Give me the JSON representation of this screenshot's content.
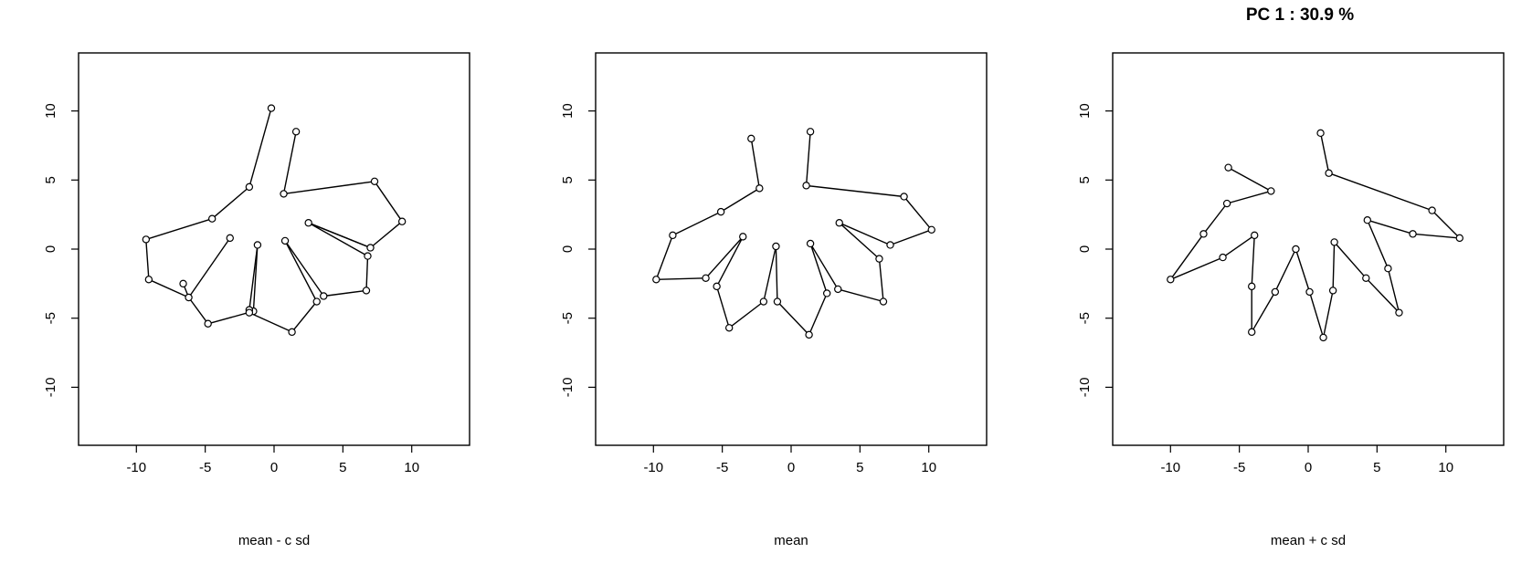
{
  "title": "PC  1 :  30.9 %",
  "chart_data": [
    {
      "type": "line",
      "xlabel": "mean - c sd",
      "ylabel": "",
      "xlim": [
        -14.2,
        14.2
      ],
      "ylim": [
        -14.2,
        14.2
      ],
      "xticks": [
        -10,
        -5,
        0,
        5,
        10
      ],
      "yticks": [
        -10,
        -5,
        0,
        5,
        10
      ],
      "grid": false,
      "paths": [
        [
          [
            -0.2,
            10.2
          ],
          [
            -1.8,
            4.5
          ],
          [
            -4.5,
            2.2
          ],
          [
            -9.3,
            0.7
          ],
          [
            -9.1,
            -2.2
          ],
          [
            -6.2,
            -3.5
          ],
          [
            -4.8,
            -5.4
          ],
          [
            -1.5,
            -4.5
          ],
          [
            -1.2,
            0.3
          ]
        ],
        [
          [
            -6.6,
            -2.5
          ],
          [
            -6.2,
            -3.5
          ],
          [
            -3.2,
            0.8
          ]
        ],
        [
          [
            -1.8,
            -4.4
          ],
          [
            -1.2,
            0.3
          ]
        ],
        [
          [
            1.6,
            8.5
          ],
          [
            0.7,
            4.0
          ],
          [
            7.3,
            4.9
          ],
          [
            9.3,
            2.0
          ],
          [
            7.0,
            0.1
          ],
          [
            2.5,
            1.9
          ],
          [
            6.8,
            -0.5
          ],
          [
            6.7,
            -3.0
          ],
          [
            3.6,
            -3.4
          ],
          [
            0.8,
            0.6
          ]
        ],
        [
          [
            2.5,
            1.9
          ],
          [
            7.0,
            0.1
          ]
        ],
        [
          [
            0.8,
            0.6
          ],
          [
            3.1,
            -3.8
          ],
          [
            1.3,
            -6.0
          ],
          [
            -1.8,
            -4.6
          ]
        ]
      ]
    },
    {
      "type": "line",
      "xlabel": "mean",
      "ylabel": "",
      "xlim": [
        -14.2,
        14.2
      ],
      "ylim": [
        -14.2,
        14.2
      ],
      "xticks": [
        -10,
        -5,
        0,
        5,
        10
      ],
      "yticks": [
        -10,
        -5,
        0,
        5,
        10
      ],
      "grid": false,
      "paths": [
        [
          [
            -2.9,
            8.0
          ],
          [
            -2.3,
            4.4
          ],
          [
            -5.1,
            2.7
          ],
          [
            -8.6,
            1.0
          ],
          [
            -9.8,
            -2.2
          ],
          [
            -6.2,
            -2.1
          ],
          [
            -3.5,
            0.9
          ],
          [
            -5.4,
            -2.7
          ],
          [
            -4.5,
            -5.7
          ],
          [
            -2.0,
            -3.8
          ],
          [
            -1.1,
            0.2
          ],
          [
            -1.0,
            -3.8
          ],
          [
            1.3,
            -6.2
          ],
          [
            2.6,
            -3.2
          ],
          [
            1.4,
            0.4
          ],
          [
            3.4,
            -2.9
          ],
          [
            6.7,
            -3.8
          ],
          [
            6.4,
            -0.7
          ],
          [
            3.5,
            1.9
          ],
          [
            7.2,
            0.3
          ],
          [
            10.2,
            1.4
          ],
          [
            8.2,
            3.8
          ],
          [
            1.1,
            4.6
          ],
          [
            1.4,
            8.5
          ]
        ]
      ]
    },
    {
      "type": "line",
      "xlabel": "mean + c sd",
      "ylabel": "",
      "xlim": [
        -14.2,
        14.2
      ],
      "ylim": [
        -14.2,
        14.2
      ],
      "xticks": [
        -10,
        -5,
        0,
        5,
        10
      ],
      "yticks": [
        -10,
        -5,
        0,
        5,
        10
      ],
      "grid": false,
      "paths": [
        [
          [
            -5.8,
            5.9
          ],
          [
            -2.7,
            4.2
          ],
          [
            -5.9,
            3.3
          ],
          [
            -7.6,
            1.1
          ],
          [
            -10.0,
            -2.2
          ],
          [
            -6.2,
            -0.6
          ],
          [
            -3.9,
            1.0
          ],
          [
            -4.1,
            -2.7
          ],
          [
            -4.1,
            -6.0
          ],
          [
            -2.4,
            -3.1
          ],
          [
            -0.9,
            0.0
          ],
          [
            0.1,
            -3.1
          ],
          [
            1.1,
            -6.4
          ],
          [
            1.8,
            -3.0
          ],
          [
            1.9,
            0.5
          ],
          [
            4.2,
            -2.1
          ],
          [
            6.6,
            -4.6
          ],
          [
            5.8,
            -1.4
          ],
          [
            4.3,
            2.1
          ],
          [
            7.6,
            1.1
          ],
          [
            11.0,
            0.8
          ],
          [
            9.0,
            2.8
          ],
          [
            1.5,
            5.5
          ],
          [
            0.9,
            8.4
          ]
        ]
      ]
    }
  ]
}
